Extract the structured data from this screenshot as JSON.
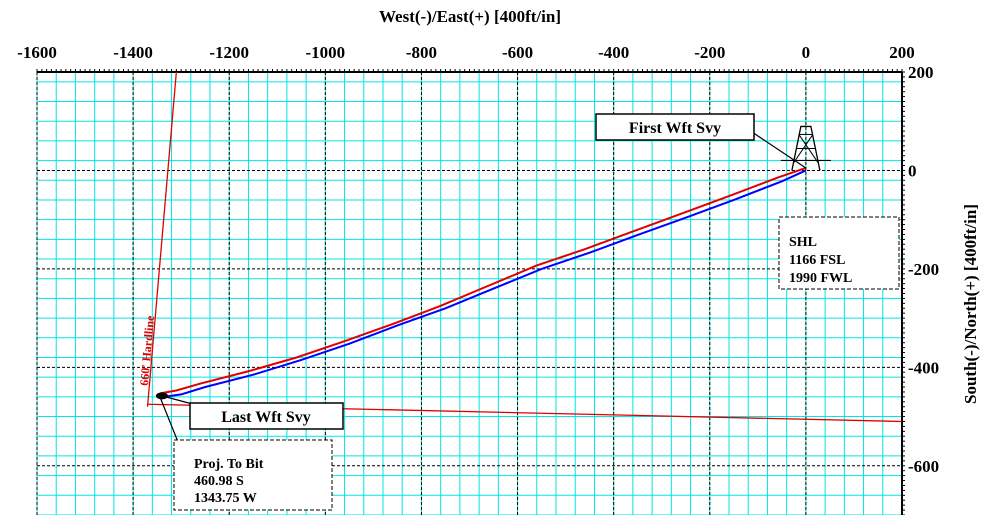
{
  "colors": {
    "background": "#ffffff",
    "minor_grid": "#00e5e5",
    "major_grid": "#000000",
    "actual_path": "#0000ff",
    "plan_path": "#e00000",
    "hardline": "#e00000",
    "text": "#000000"
  },
  "chart_data": {
    "type": "line",
    "title": "",
    "xlabel": "West(-)/East(+) [400ft/in]",
    "ylabel": "South(-)/North(+) [400ft/in]",
    "xlim": [
      -1600,
      200
    ],
    "ylim": [
      -700,
      200
    ],
    "x_ticks": [
      -1600,
      -1400,
      -1200,
      -1000,
      -800,
      -600,
      -400,
      -200,
      0,
      200
    ],
    "x_tick_labels": [
      "-1600",
      "-1400",
      "-1200",
      "-1000",
      "-800",
      "-600",
      "-400",
      "-200",
      "0",
      "200"
    ],
    "y_ticks": [
      200,
      0,
      -200,
      -400,
      -600
    ],
    "y_tick_labels": [
      "200",
      "0",
      "-200",
      "-400",
      "-600"
    ],
    "x_axis_position": "top",
    "y_axis_position": "right",
    "major_grid_step": 200,
    "minor_grid_step": 40,
    "grid": true,
    "series": [
      {
        "color": "#0000ff",
        "x": [
          0,
          -50,
          -150,
          -250,
          -350,
          -450,
          -550,
          -650,
          -750,
          -850,
          -950,
          -1050,
          -1150,
          -1250,
          -1300,
          -1343.75
        ],
        "y": [
          0,
          -22,
          -60,
          -96,
          -131,
          -167,
          -200,
          -240,
          -280,
          -315,
          -352,
          -385,
          -415,
          -440,
          -455,
          -460.98
        ]
      },
      {
        "color": "#e00000",
        "x": [
          0,
          -60,
          -160,
          -260,
          -360,
          -460,
          -560,
          -660,
          -760,
          -860,
          -960,
          -1060,
          -1160,
          -1260,
          -1310,
          -1343.75
        ],
        "y": [
          5,
          -15,
          -52,
          -88,
          -124,
          -160,
          -193,
          -234,
          -275,
          -312,
          -347,
          -380,
          -408,
          -433,
          -447,
          -453
        ]
      }
    ],
    "hardlines": [
      {
        "label": "660' Hardline",
        "x": [
          -1370,
          -1310
        ],
        "y": [
          -480,
          200
        ]
      },
      {
        "x": [
          -1370,
          200
        ],
        "y": [
          -475,
          -510
        ]
      }
    ],
    "rig_marker": {
      "x": 0,
      "y": 0
    },
    "annotations": {
      "first_survey": {
        "label": "First Wft Svy",
        "x": 0,
        "y": 5
      },
      "last_survey": {
        "label": "Last Wft Svy",
        "x": -1340,
        "y": -458
      },
      "surface_location": {
        "lines": [
          "SHL",
          "1166 FSL",
          "1990 FWL"
        ],
        "x": 0,
        "y": 0
      },
      "projection": {
        "lines": [
          "Proj. To Bit",
          "460.98 S",
          "1343.75 W"
        ],
        "x": -1343.75,
        "y": -460.98
      }
    }
  }
}
